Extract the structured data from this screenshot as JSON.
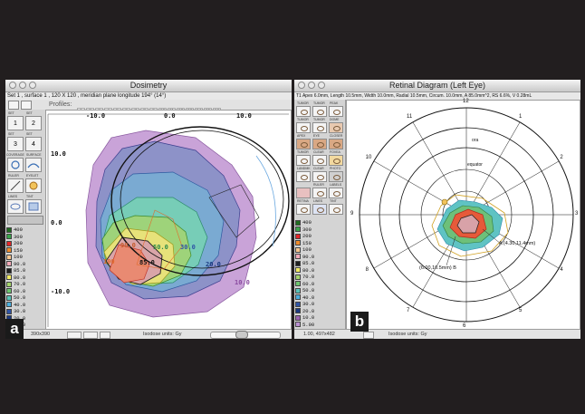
{
  "colors": {
    "background": "#221e1f",
    "accent": "#1a1a1a"
  },
  "left": {
    "title": "Dosimetry",
    "info": "Set 1 , surface 1 , 120 X 120 , meridian plane longitude 194° (14°)",
    "profiles_label": "Profiles:",
    "profiles": [
      "1",
      "2",
      "3",
      "4",
      "5",
      "6",
      "7",
      "8",
      "9",
      "10",
      "11",
      "12",
      "13",
      "14",
      "15",
      "16"
    ],
    "tool_labels": [
      "SET",
      "SET",
      "SET",
      "SET",
      "COVERAGE",
      "SURFACE",
      "RULER",
      "EYELET",
      "LINES",
      "TINT"
    ],
    "set_numbers": [
      "1",
      "2",
      "3",
      "4"
    ],
    "axis_labels": {
      "top_left": "-10.0",
      "top_mid": "0.0",
      "top_right": "10.0",
      "left_top": "10.0",
      "left_mid": "0.0",
      "left_bot": "-10.0"
    },
    "plot_labels": [
      "90.0",
      "50.0",
      "30.0",
      "85.0",
      "20.0",
      "100",
      "10.0"
    ],
    "status_size": "390x390",
    "isodose_units": "Isodose units: Gy",
    "panel_letter": "a"
  },
  "right": {
    "title": "Retinal Diagram (Left Eye)",
    "info": "T1  Apex 6.0mm, Length 10.5mm, Width 10.0mm, Radial 10.5mm, Circum. 10.0mm, A 85.0mm^2, RS 6.6%, V 0.28mL",
    "tool_labels": [
      "TUMOR",
      "TUMOR",
      "PEAK",
      "TUMOR",
      "TUMOR",
      "DOME",
      "APEX",
      "EYE",
      "CLOSER",
      "TUMOR",
      "CLEAR",
      "FOVEA",
      "LANDMK",
      "CLEAR",
      "PHOTO",
      "",
      "RULER",
      "LABELS",
      "RETINA",
      "LINES",
      "TINT"
    ],
    "clock": [
      "12",
      "1",
      "2",
      "3",
      "4",
      "5",
      "6",
      "7",
      "8",
      "9",
      "10",
      "11"
    ],
    "annotations": [
      "ora",
      "equator",
      "A (4.30,11.4mm)",
      "(6.00,10.5mm) B"
    ],
    "status_coords": "1.00, 497x482",
    "isodose_units": "Isodose units: Gy",
    "panel_letter": "b"
  },
  "legend": [
    {
      "v": "400",
      "c": "#1f6b1f"
    },
    {
      "v": "300",
      "c": "#39a54a"
    },
    {
      "v": "200",
      "c": "#e4262a"
    },
    {
      "v": "150",
      "c": "#ef8a2a"
    },
    {
      "v": "100",
      "c": "#f6c58f"
    },
    {
      "v": "90.0",
      "c": "#f3a9b8"
    },
    {
      "v": "85.0",
      "c": "#1e1e1e"
    },
    {
      "v": "80.0",
      "c": "#f2ea63"
    },
    {
      "v": "70.0",
      "c": "#a4d36a"
    },
    {
      "v": "60.0",
      "c": "#6cc46e"
    },
    {
      "v": "50.0",
      "c": "#58c3b8"
    },
    {
      "v": "40.0",
      "c": "#4aaede"
    },
    {
      "v": "30.0",
      "c": "#2f54a6"
    },
    {
      "v": "20.0",
      "c": "#1a3880"
    },
    {
      "v": "10.0",
      "c": "#9a62b0"
    },
    {
      "v": "5.00",
      "c": "#b98fd0"
    }
  ]
}
